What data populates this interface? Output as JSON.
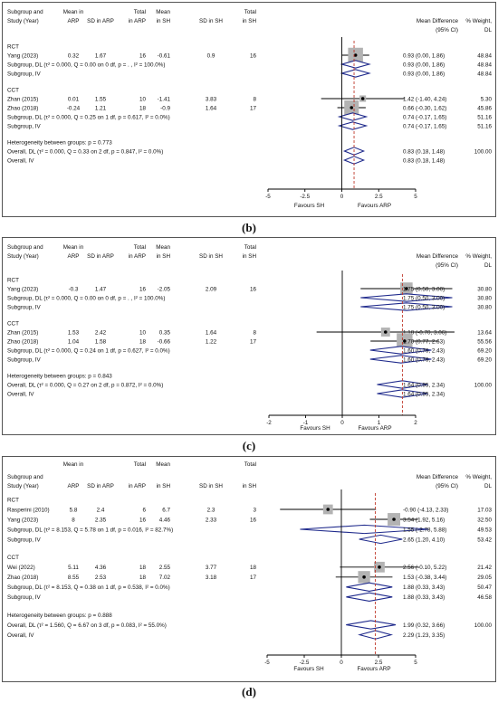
{
  "panels": [
    {
      "caption": "(b)",
      "chart_data": {
        "type": "forest",
        "header_rows": [
          [
            "Subgroup and",
            "Mean in",
            "",
            "Total",
            "Mean",
            "",
            "Total",
            "",
            ""
          ],
          [
            "Study (Year)",
            "ARP",
            "SD in ARP",
            "in ARP",
            "in SH",
            "SD in SH",
            "in SH",
            "Mean Difference",
            "% Weight,"
          ],
          [
            "",
            "",
            "",
            "",
            "",
            "",
            "",
            "(95% CI)",
            "DL"
          ]
        ],
        "xlim": [
          -5,
          5
        ],
        "ticks": [
          "-5",
          "-2.5",
          "0",
          "2.5",
          "5"
        ],
        "tick_values": [
          -5,
          -2.5,
          0,
          2.5,
          5
        ],
        "overall_line": 0.83,
        "favours_left": "Favours SH",
        "favours_right": "Favours ARP",
        "rows": [
          {
            "kind": "group",
            "label": "RCT"
          },
          {
            "kind": "study",
            "label": "Yang (2023)",
            "m1": "0.32",
            "sd1": "1.67",
            "n1": "16",
            "m2": "-0.61",
            "sd2": "0.9",
            "n2": "16",
            "est": 0.93,
            "lo": 0.0,
            "hi": 1.86,
            "ci": "0.93 (0.00, 1.86)",
            "wt": "48.84",
            "w": 48.84
          },
          {
            "kind": "pooled",
            "label": "Subgroup, DL (τ² = 0.000, Q = 0.00 on 0 df, p = . , I² = 100.0%)",
            "est": 0.93,
            "lo": 0.0,
            "hi": 1.86,
            "ci": "0.93 (0.00, 1.86)",
            "wt": "48.84"
          },
          {
            "kind": "pooled",
            "label": "Subgroup, IV",
            "est": 0.93,
            "lo": 0.0,
            "hi": 1.86,
            "ci": "0.93 (0.00, 1.86)",
            "wt": "48.84"
          },
          {
            "kind": "spacer"
          },
          {
            "kind": "group",
            "label": "CCT"
          },
          {
            "kind": "study",
            "label": "Zhan (2015)",
            "m1": "0.01",
            "sd1": "1.55",
            "n1": "10",
            "m2": "-1.41",
            "sd2": "3.83",
            "n2": "8",
            "est": 1.42,
            "lo": -1.4,
            "hi": 4.24,
            "ci": "1.42 (-1.40, 4.24)",
            "wt": "5.30",
            "w": 5.3
          },
          {
            "kind": "study",
            "label": "Zhao (2018)",
            "m1": "-0.24",
            "sd1": "1.21",
            "n1": "18",
            "m2": "-0.9",
            "sd2": "1.64",
            "n2": "17",
            "est": 0.66,
            "lo": -0.3,
            "hi": 1.62,
            "ci": "0.66 (-0.30, 1.62)",
            "wt": "45.86",
            "w": 45.86
          },
          {
            "kind": "pooled",
            "label": "Subgroup, DL (τ² = 0.000, Q = 0.25 on 1 df, p = 0.617, I² = 0.0%)",
            "est": 0.74,
            "lo": -0.17,
            "hi": 1.65,
            "ci": "0.74 (-0.17, 1.65)",
            "wt": "51.16"
          },
          {
            "kind": "pooled",
            "label": "Subgroup, IV",
            "est": 0.74,
            "lo": -0.17,
            "hi": 1.65,
            "ci": "0.74 (-0.17, 1.65)",
            "wt": "51.16"
          },
          {
            "kind": "spacer"
          },
          {
            "kind": "text",
            "label": "Heterogeneity between groups: p = 0.773"
          },
          {
            "kind": "pooled",
            "label": "Overall, DL (τ² = 0.000, Q = 0.33 on 2 df, p = 0.847, I² = 0.0%)",
            "est": 0.83,
            "lo": 0.18,
            "hi": 1.48,
            "ci": "0.83 (0.18, 1.48)",
            "wt": "100.00"
          },
          {
            "kind": "pooled",
            "label": "Overall, IV",
            "est": 0.83,
            "lo": 0.18,
            "hi": 1.48,
            "ci": "0.83 (0.18, 1.48)",
            "wt": ""
          }
        ]
      }
    },
    {
      "caption": "(c)",
      "chart_data": {
        "type": "forest",
        "header_rows": [
          [
            "Subgroup and",
            "Mean in",
            "",
            "Total",
            "Mean",
            "",
            "Total",
            "",
            ""
          ],
          [
            "Study (Year)",
            "ARP",
            "SD in ARP",
            "in ARP",
            "in SH",
            "SD in SH",
            "in SH",
            "Mean Difference",
            "% Weight,"
          ],
          [
            "",
            "",
            "",
            "",
            "",
            "",
            "",
            "(95% CI)",
            "DL"
          ]
        ],
        "xlim": [
          -2,
          2
        ],
        "ticks": [
          "-2",
          "-1",
          "0",
          "1",
          "2"
        ],
        "tick_values": [
          -2,
          -1,
          0,
          1,
          2
        ],
        "overall_line": 1.64,
        "favours_left": "Favours SH",
        "favours_right": "Favours ARP",
        "rows": [
          {
            "kind": "group",
            "label": "RCT"
          },
          {
            "kind": "study",
            "label": "Yang (2023)",
            "m1": "-0.3",
            "sd1": "1.47",
            "n1": "16",
            "m2": "-2.05",
            "sd2": "2.09",
            "n2": "16",
            "est": 1.75,
            "lo": 0.5,
            "hi": 3.0,
            "ci": "1.75 (0.50, 3.00)",
            "wt": "30.80",
            "w": 30.8
          },
          {
            "kind": "pooled",
            "label": "Subgroup, DL (τ² = 0.000, Q = 0.00 on 0 df, p = . , I² = 100.0%)",
            "est": 1.75,
            "lo": 0.5,
            "hi": 3.0,
            "ci": "1.75 (0.50, 3.00)",
            "wt": "30.80"
          },
          {
            "kind": "pooled",
            "label": "Subgroup, IV",
            "est": 1.75,
            "lo": 0.5,
            "hi": 3.0,
            "ci": "1.75 (0.50, 3.00)",
            "wt": "30.80"
          },
          {
            "kind": "spacer"
          },
          {
            "kind": "group",
            "label": "CCT"
          },
          {
            "kind": "study",
            "label": "Zhan (2015)",
            "m1": "1.53",
            "sd1": "2.42",
            "n1": "10",
            "m2": "0.35",
            "sd2": "1.64",
            "n2": "8",
            "est": 1.18,
            "lo": -0.7,
            "hi": 3.06,
            "ci": "1.18 (-0.70, 3.06)",
            "wt": "13.64",
            "w": 13.64
          },
          {
            "kind": "study",
            "label": "Zhao (2018)",
            "m1": "1.04",
            "sd1": "1.58",
            "n1": "18",
            "m2": "-0.66",
            "sd2": "1.22",
            "n2": "17",
            "est": 1.7,
            "lo": 0.77,
            "hi": 2.63,
            "ci": "1.70 (0.77, 2.63)",
            "wt": "55.56",
            "w": 55.56
          },
          {
            "kind": "pooled",
            "label": "Subgroup, DL (τ² = 0.000, Q = 0.24 on 1 df, p = 0.627, I² = 0.0%)",
            "est": 1.6,
            "lo": 0.76,
            "hi": 2.43,
            "ci": "1.60 (0.76, 2.43)",
            "wt": "69.20"
          },
          {
            "kind": "pooled",
            "label": "Subgroup, IV",
            "est": 1.6,
            "lo": 0.76,
            "hi": 2.43,
            "ci": "1.60 (0.76, 2.43)",
            "wt": "69.20"
          },
          {
            "kind": "spacer"
          },
          {
            "kind": "text",
            "label": "Heterogeneity between groups: p = 0.843"
          },
          {
            "kind": "pooled",
            "label": "Overall, DL (τ² = 0.000, Q = 0.27 on 2 df, p = 0.872, I² = 0.0%)",
            "est": 1.64,
            "lo": 0.95,
            "hi": 2.34,
            "ci": "1.64 (0.95, 2.34)",
            "wt": "100.00"
          },
          {
            "kind": "pooled",
            "label": "Overall, IV",
            "est": 1.64,
            "lo": 0.95,
            "hi": 2.34,
            "ci": "1.64 (0.95, 2.34)",
            "wt": ""
          }
        ]
      }
    },
    {
      "caption": "(d)",
      "chart_data": {
        "type": "forest",
        "header_rows": [
          [
            "",
            "Mean in",
            "",
            "Total",
            "Mean",
            "",
            "Total",
            "",
            ""
          ],
          [
            "Subgroup and",
            "",
            "",
            "",
            "",
            "",
            "",
            "Mean Difference",
            "% Weight,"
          ],
          [
            "Study (Year)",
            "ARP",
            "SD in ARP",
            "in ARP",
            "in SH",
            "SD in SH",
            "in SH",
            "(95% CI)",
            "DL"
          ]
        ],
        "xlim": [
          -5,
          5
        ],
        "ticks": [
          "-5",
          "-2.5",
          "0",
          "2.5",
          "5"
        ],
        "tick_values": [
          -5,
          -2.5,
          0,
          2.5,
          5
        ],
        "overall_line": 2.29,
        "favours_left": "Favours SH",
        "favours_right": "Favours ARP",
        "rows": [
          {
            "kind": "group",
            "label": "RCT"
          },
          {
            "kind": "study",
            "label": "Rasperini (2010)",
            "m1": "5.8",
            "sd1": "2.4",
            "n1": "6",
            "m2": "6.7",
            "sd2": "2.3",
            "n2": "3",
            "est": -0.9,
            "lo": -4.13,
            "hi": 2.33,
            "ci": "-0.90 (-4.13, 2.33)",
            "wt": "17.03",
            "w": 17.03
          },
          {
            "kind": "study",
            "label": "Yang (2023)",
            "m1": "8",
            "sd1": "2.35",
            "n1": "16",
            "m2": "4.46",
            "sd2": "2.33",
            "n2": "16",
            "est": 3.54,
            "lo": 1.92,
            "hi": 5.16,
            "ci": "3.54 (1.92, 5.16)",
            "wt": "32.50",
            "w": 32.5
          },
          {
            "kind": "pooled",
            "label": "Subgroup, DL (τ² = 8.153, Q = 5.78 on 1 df, p = 0.016, I² = 82.7%)",
            "est": 1.55,
            "lo": -2.78,
            "hi": 5.88,
            "ci": "1.55 (-2.78, 5.88)",
            "wt": "49.53"
          },
          {
            "kind": "pooled",
            "label": "Subgroup, IV",
            "est": 2.65,
            "lo": 1.2,
            "hi": 4.1,
            "ci": "2.65 (1.20, 4.10)",
            "wt": "53.42"
          },
          {
            "kind": "spacer"
          },
          {
            "kind": "group",
            "label": "CCT"
          },
          {
            "kind": "study",
            "label": "Wei (2022)",
            "m1": "5.11",
            "sd1": "4.36",
            "n1": "18",
            "m2": "2.55",
            "sd2": "3.77",
            "n2": "18",
            "est": 2.56,
            "lo": -0.1,
            "hi": 5.22,
            "ci": "2.56 (-0.10, 5.22)",
            "wt": "21.42",
            "w": 21.42
          },
          {
            "kind": "study",
            "label": "Zhao (2018)",
            "m1": "8.55",
            "sd1": "2.53",
            "n1": "18",
            "m2": "7.02",
            "sd2": "3.18",
            "n2": "17",
            "est": 1.53,
            "lo": -0.38,
            "hi": 3.44,
            "ci": "1.53 (-0.38, 3.44)",
            "wt": "29.05",
            "w": 29.05
          },
          {
            "kind": "pooled",
            "label": "Subgroup, DL (τ² = 8.153, Q = 0.38 on 1 df, p = 0.538, I² = 0.0%)",
            "est": 1.88,
            "lo": 0.33,
            "hi": 3.43,
            "ci": "1.88 (0.33, 3.43)",
            "wt": "50.47"
          },
          {
            "kind": "pooled",
            "label": "Subgroup, IV",
            "est": 1.88,
            "lo": 0.33,
            "hi": 3.43,
            "ci": "1.88 (0.33, 3.43)",
            "wt": "46.58"
          },
          {
            "kind": "spacer"
          },
          {
            "kind": "text",
            "label": "Heterogeneity between groups: p = 0.888"
          },
          {
            "kind": "pooled",
            "label": "Overall, DL (τ² = 1.560, Q = 6.67 on 3 df, p = 0.083, I² = 55.0%)",
            "est": 1.99,
            "lo": 0.32,
            "hi": 3.66,
            "ci": "1.99 (0.32, 3.66)",
            "wt": "100.00"
          },
          {
            "kind": "pooled",
            "label": "Overall, IV",
            "est": 2.29,
            "lo": 1.23,
            "hi": 3.35,
            "ci": "2.29 (1.23, 3.35)",
            "wt": ""
          }
        ]
      }
    }
  ]
}
